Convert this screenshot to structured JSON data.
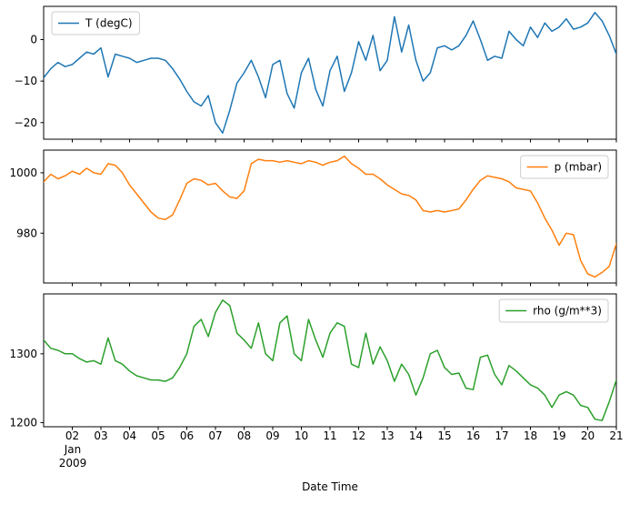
{
  "figure": {
    "background_color": "#ffffff",
    "text_color": "#000000"
  },
  "x_axis": {
    "label": "Date Time",
    "xlim_days": [
      1,
      21
    ],
    "x_start": 1,
    "x_step": 0.25,
    "n_points": 81,
    "tick_positions": [
      2,
      3,
      4,
      5,
      6,
      7,
      8,
      9,
      10,
      11,
      12,
      13,
      14,
      15,
      16,
      17,
      18,
      19,
      20,
      21
    ],
    "tick_labels": [
      "02",
      "03",
      "04",
      "05",
      "06",
      "07",
      "08",
      "09",
      "10",
      "11",
      "12",
      "13",
      "14",
      "15",
      "16",
      "17",
      "18",
      "19",
      "20",
      "21"
    ],
    "month_year_sublabel": [
      "Jan",
      "2009"
    ]
  },
  "chart_data": [
    {
      "type": "line",
      "title": "",
      "xlabel": "Date Time",
      "ylabel": "",
      "grid": false,
      "ylim": [
        -24,
        8
      ],
      "yticks": [
        {
          "value": 0,
          "label": "0"
        },
        {
          "value": -10,
          "label": "−10"
        },
        {
          "value": -20,
          "label": "−20"
        }
      ],
      "legend": {
        "label": "T (degC)",
        "loc": "upper left"
      },
      "series": [
        {
          "name": "T (degC)",
          "color": "#1f77b4",
          "values": [
            -9.2,
            -7,
            -5.5,
            -6.5,
            -6,
            -4.5,
            -3,
            -3.5,
            -2,
            -9,
            -3.5,
            -4,
            -4.5,
            -5.5,
            -5,
            -4.5,
            -4.5,
            -5,
            -7,
            -9.5,
            -12.5,
            -15,
            -16,
            -13.5,
            -20,
            -22.5,
            -17,
            -10.5,
            -8,
            -5,
            -9,
            -14,
            -6,
            -5,
            -13,
            -16.5,
            -8,
            -4.5,
            -12,
            -16,
            -7.5,
            -4,
            -12.5,
            -8,
            -0.5,
            -5,
            1,
            -7.5,
            -5,
            5.5,
            -3,
            3.5,
            -5,
            -10,
            -8,
            -2,
            -1.5,
            -2.5,
            -1.5,
            1,
            4.5,
            0,
            -5,
            -4,
            -4.5,
            2,
            0,
            -1.5,
            3,
            0.5,
            4,
            2,
            3,
            5,
            2.5,
            3,
            4,
            6.5,
            4.5,
            1,
            -3.5
          ]
        }
      ]
    },
    {
      "type": "line",
      "title": "",
      "xlabel": "Date Time",
      "ylabel": "",
      "grid": false,
      "ylim": [
        963.5,
        1007.5
      ],
      "yticks": [
        {
          "value": 1000,
          "label": "1000"
        },
        {
          "value": 980,
          "label": "980"
        }
      ],
      "legend": {
        "label": "p (mbar)",
        "loc": "upper right"
      },
      "series": [
        {
          "name": "p (mbar)",
          "color": "#ff7f0e",
          "values": [
            997,
            999.5,
            998,
            999,
            1000.5,
            999.5,
            1001.5,
            1000,
            999.5,
            1003,
            1002.5,
            1000,
            996,
            993,
            990,
            987,
            985,
            984.5,
            986,
            991,
            996.5,
            998,
            997.5,
            996,
            996.5,
            994,
            992,
            991.5,
            994,
            1003,
            1004.5,
            1004,
            1004,
            1003.5,
            1004,
            1003.5,
            1003,
            1004,
            1003.5,
            1002.5,
            1003.5,
            1004,
            1005.5,
            1003,
            1001.5,
            999.5,
            999.5,
            998,
            996,
            994.5,
            993,
            992.5,
            991,
            987.5,
            987,
            987.5,
            987,
            987.5,
            988,
            991,
            994.5,
            997.5,
            999,
            998.5,
            998,
            997,
            995,
            994.5,
            994,
            990,
            985,
            981,
            976,
            980,
            979.5,
            971,
            966.5,
            965.5,
            967,
            969,
            976.5
          ]
        }
      ]
    },
    {
      "type": "line",
      "title": "",
      "xlabel": "Date Time",
      "ylabel": "",
      "grid": false,
      "ylim": [
        1194,
        1387
      ],
      "yticks": [
        {
          "value": 1300,
          "label": "1300"
        },
        {
          "value": 1200,
          "label": "1200"
        }
      ],
      "legend": {
        "label": "rho (g/m**3)",
        "loc": "upper right"
      },
      "series": [
        {
          "name": "rho (g/m**3)",
          "color": "#2ca02c",
          "values": [
            1320,
            1308,
            1305,
            1300,
            1300,
            1293,
            1288,
            1290,
            1285,
            1323,
            1290,
            1285,
            1275,
            1268,
            1265,
            1262,
            1262,
            1260,
            1265,
            1280,
            1300,
            1340,
            1350,
            1325,
            1360,
            1378,
            1370,
            1330,
            1320,
            1308,
            1345,
            1300,
            1290,
            1345,
            1355,
            1300,
            1290,
            1350,
            1320,
            1295,
            1330,
            1345,
            1340,
            1285,
            1280,
            1330,
            1285,
            1310,
            1290,
            1260,
            1285,
            1270,
            1240,
            1265,
            1300,
            1305,
            1280,
            1270,
            1272,
            1250,
            1248,
            1295,
            1298,
            1270,
            1255,
            1283,
            1275,
            1265,
            1255,
            1250,
            1240,
            1222,
            1240,
            1245,
            1240,
            1225,
            1222,
            1205,
            1203,
            1230,
            1262
          ]
        }
      ]
    }
  ]
}
